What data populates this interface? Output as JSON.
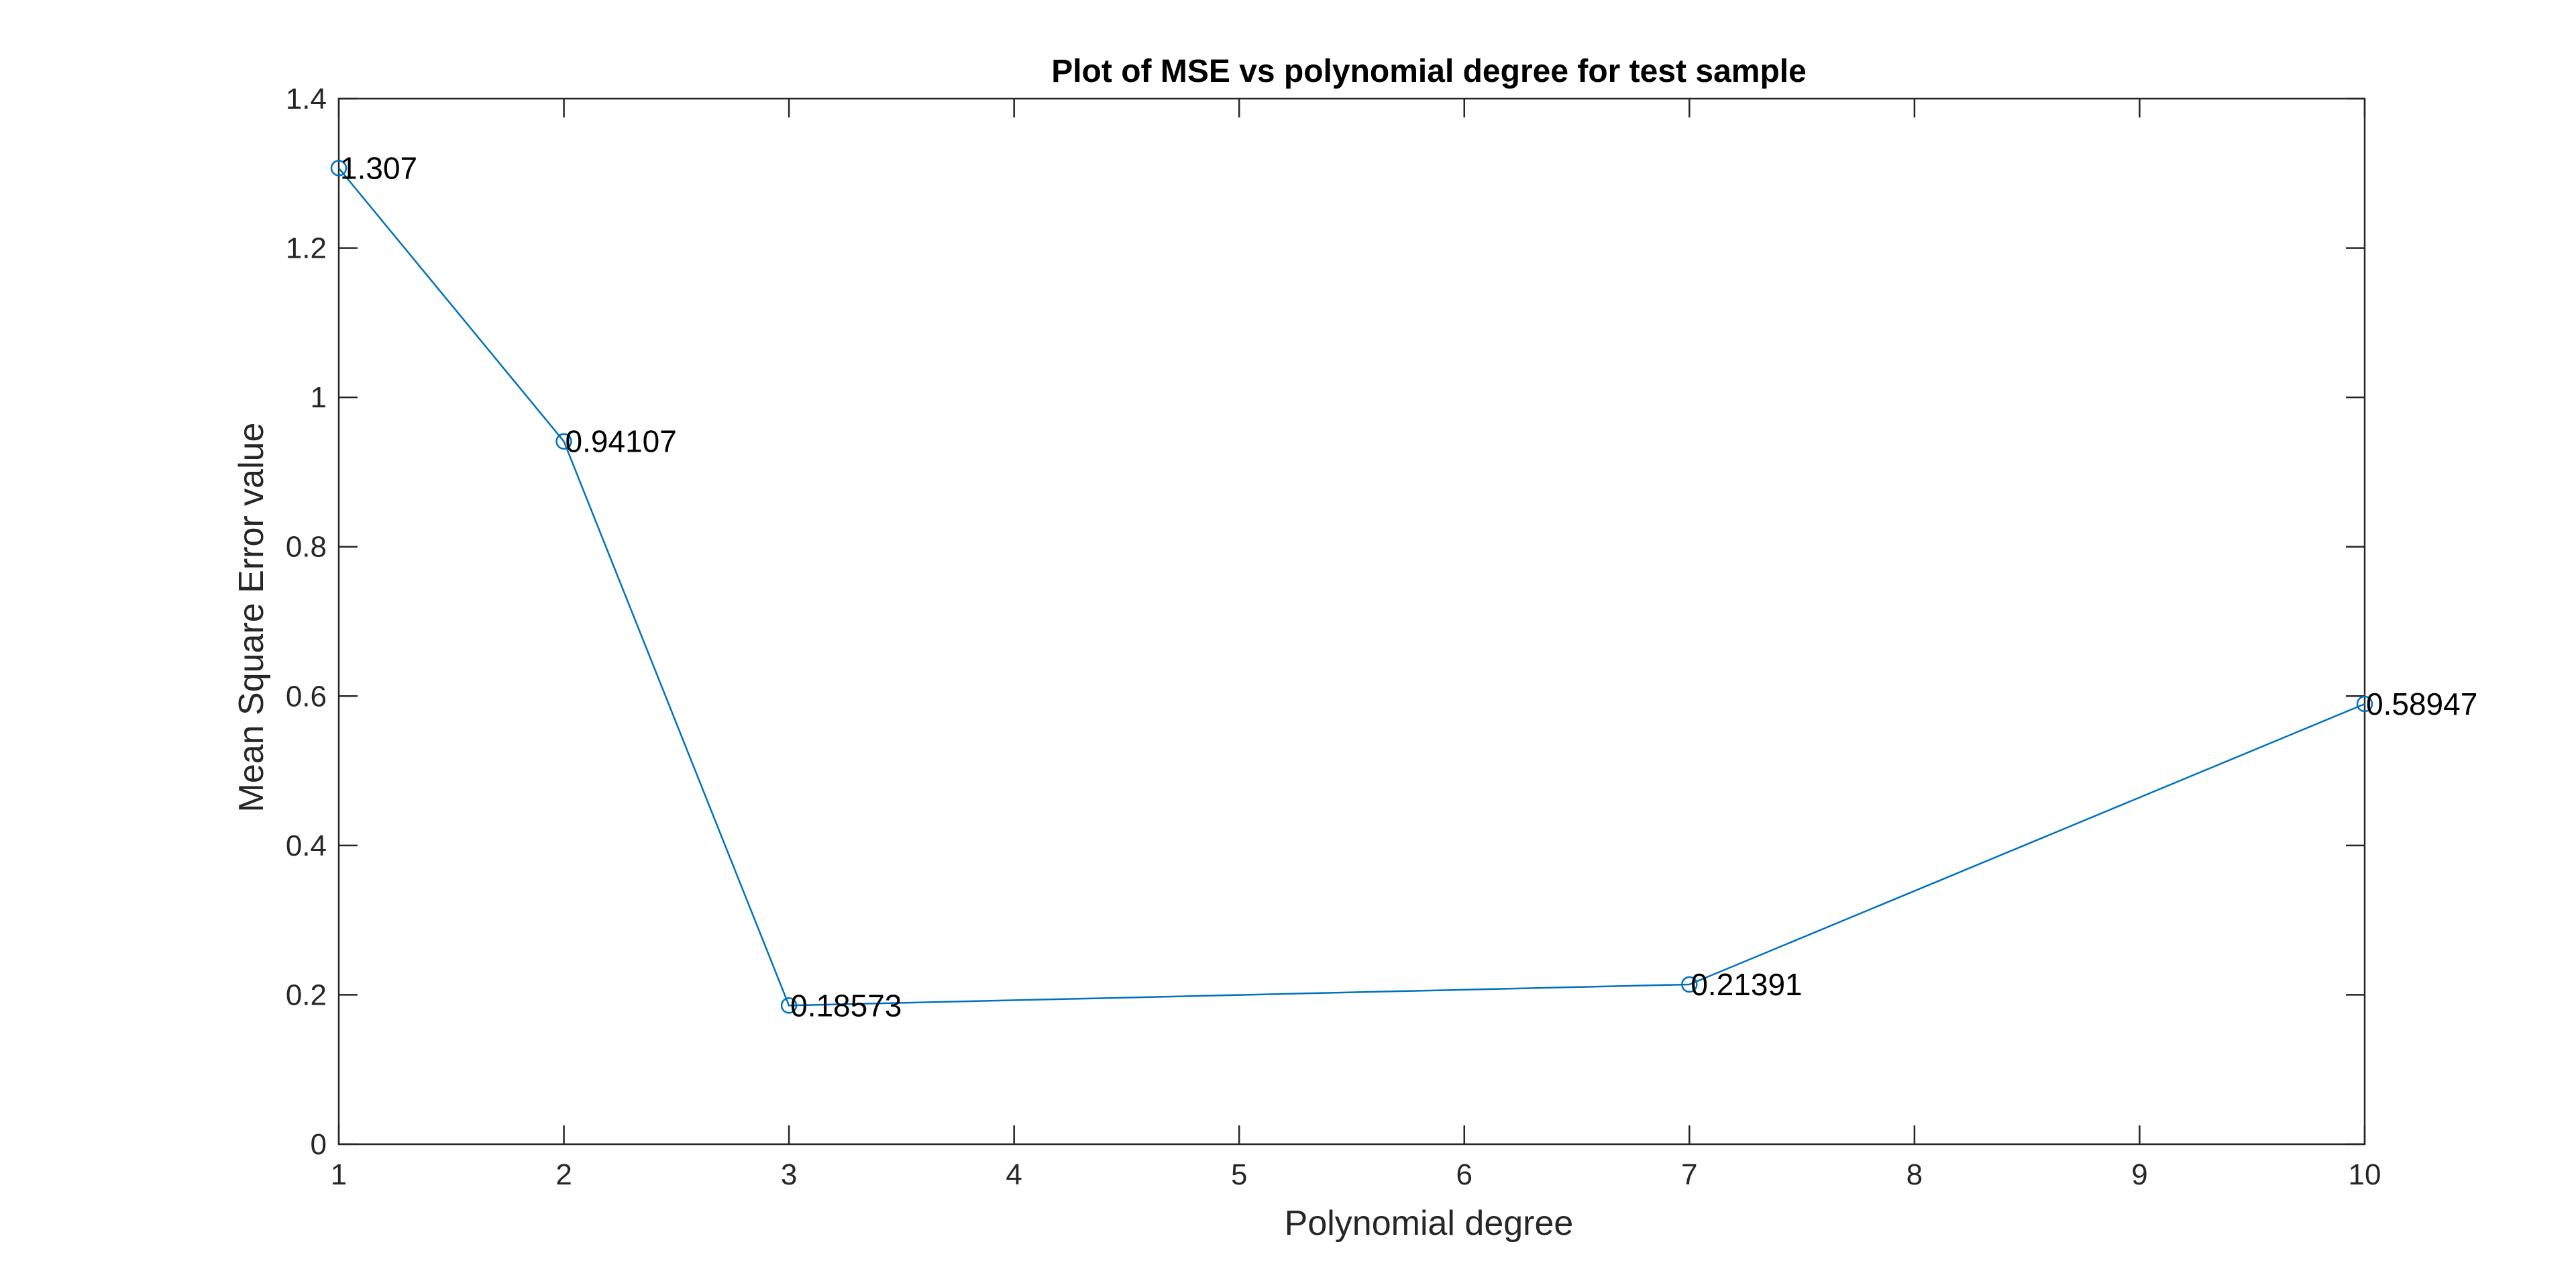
{
  "chart_data": {
    "type": "line",
    "title": "Plot of MSE vs polynomial degree for test sample",
    "xlabel": "Polynomial degree",
    "ylabel": "Mean Square Error value",
    "x_tick_labels": [
      "1",
      "2",
      "3",
      "4",
      "5",
      "6",
      "7",
      "8",
      "9",
      "10"
    ],
    "y_ticks": [
      0,
      0.2,
      0.4,
      0.6,
      0.8,
      1,
      1.2,
      1.4
    ],
    "y_tick_labels": [
      "0",
      "0.2",
      "0.4",
      "0.6",
      "0.8",
      "1",
      "1.2",
      "1.4"
    ],
    "xlim": [
      1,
      10
    ],
    "ylim": [
      0,
      1.4
    ],
    "grid": false,
    "box": true,
    "marker": "circle",
    "line_color": "#0072BD",
    "series": [
      {
        "x": [
          1,
          2,
          3,
          7,
          10
        ],
        "values": [
          1.307,
          0.94107,
          0.18573,
          0.21391,
          0.58947
        ],
        "labels": [
          "1.307",
          "0.94107",
          "0.18573",
          "0.21391",
          "0.58947"
        ]
      }
    ]
  }
}
